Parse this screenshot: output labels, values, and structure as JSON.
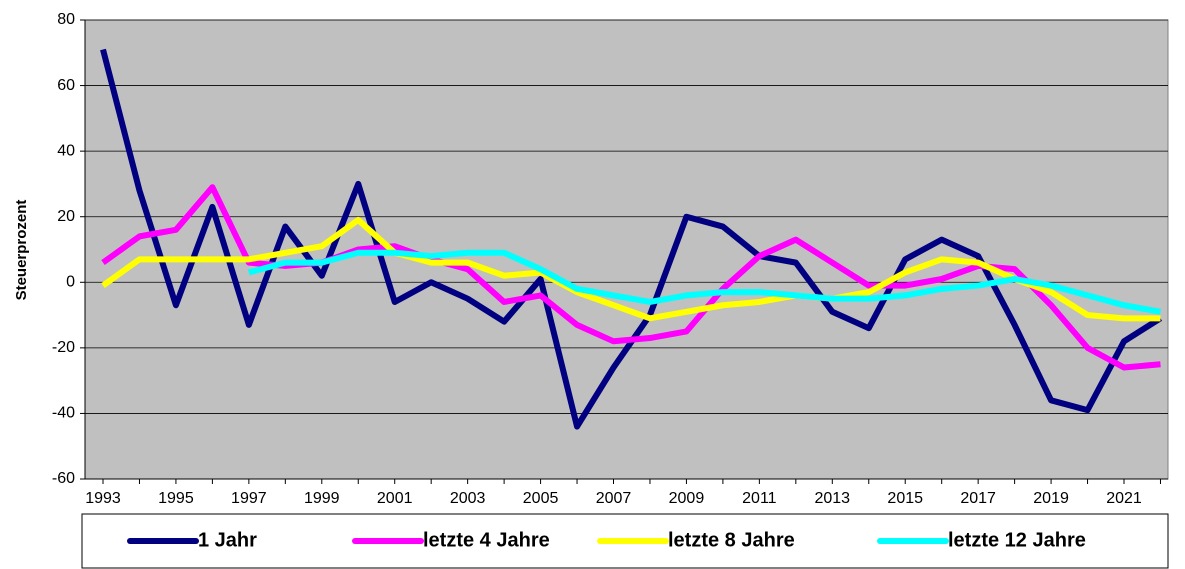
{
  "chart_data": {
    "type": "line",
    "y_label": "Steuerprozent",
    "categories": [
      "1993",
      null,
      "1995",
      null,
      "1997",
      null,
      "1999",
      null,
      "2001",
      null,
      "2003",
      null,
      "2005",
      null,
      "2007",
      null,
      "2009",
      null,
      "2011",
      null,
      "2013",
      null,
      "2015",
      null,
      "2017",
      null,
      "2019",
      null,
      "2021",
      null
    ],
    "series": [
      {
        "name": "1 Jahr",
        "color": "#000080",
        "values": [
          71,
          28,
          -7,
          23,
          -13,
          17,
          2,
          30,
          -6,
          0,
          -5,
          -12,
          1,
          -44,
          -26,
          -10,
          20,
          17,
          8,
          6,
          -9,
          -14,
          7,
          13,
          8,
          -13,
          -36,
          -39,
          -18,
          -11
        ]
      },
      {
        "name": "letzte 4 Jahre",
        "color": "#ff00ff",
        "values": [
          6,
          14,
          16,
          29,
          6,
          5,
          6,
          10,
          11,
          7,
          4,
          -6,
          -4,
          -13,
          -18,
          -17,
          -15,
          -2,
          8,
          13,
          6,
          -1,
          -1,
          1,
          5,
          4,
          -7,
          -20,
          -26,
          -25
        ]
      },
      {
        "name": "letzte 8 Jahre",
        "color": "#ffff00",
        "values": [
          -1,
          7,
          7,
          7,
          7,
          9,
          11,
          19,
          9,
          6,
          6,
          2,
          3,
          -3,
          -7,
          -11,
          -9,
          -7,
          -6,
          -4,
          -5,
          -3,
          3,
          7,
          6,
          1,
          -3,
          -10,
          -11,
          -11
        ]
      },
      {
        "name": "letzte 12 Jahre",
        "color": "#00ffff",
        "values": [
          null,
          null,
          null,
          null,
          3,
          6,
          6,
          9,
          9,
          8,
          9,
          9,
          4,
          -2,
          -4,
          -6,
          -4,
          -3,
          -3,
          -4,
          -5,
          -5,
          -4,
          -2,
          -1,
          1,
          -1,
          -4,
          -7,
          -9
        ]
      }
    ],
    "ylim": [
      -60,
      80
    ],
    "yticks": [
      -60,
      -40,
      -20,
      0,
      20,
      40,
      60,
      80
    ],
    "grid": true,
    "legend": "bottom"
  }
}
